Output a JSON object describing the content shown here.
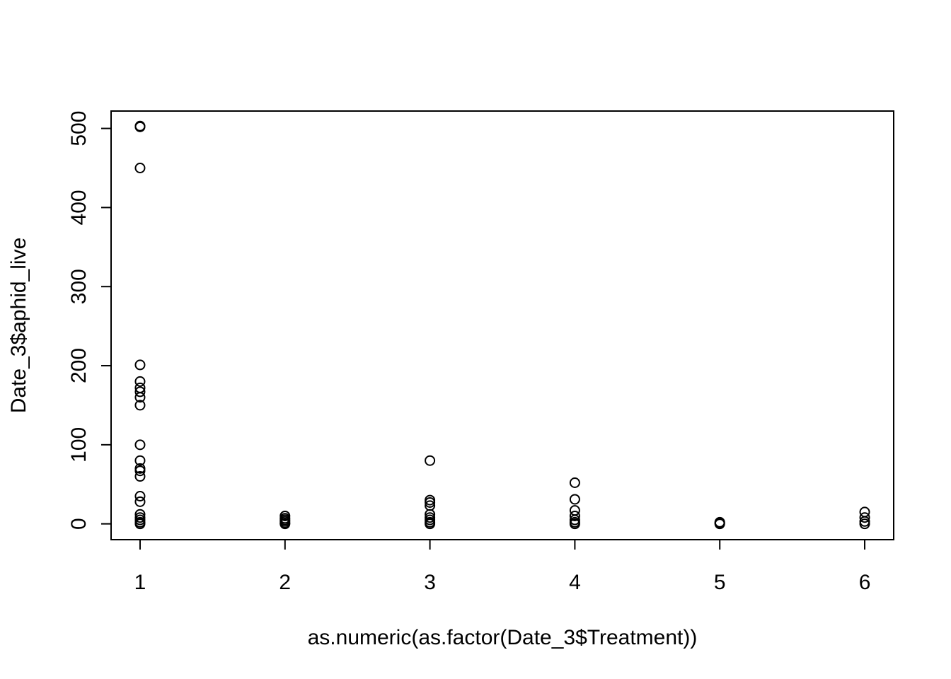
{
  "chart_data": {
    "type": "scatter",
    "title": "",
    "xlabel": "as.numeric(as.factor(Date_3$Treatment))",
    "ylabel": "Date_3$aphid_live",
    "xlim": [
      0.8,
      6.2
    ],
    "ylim": [
      -20,
      522
    ],
    "x_ticks": [
      1,
      2,
      3,
      4,
      5,
      6
    ],
    "x_tick_labels": [
      "1",
      "2",
      "3",
      "4",
      "5",
      "6"
    ],
    "y_ticks": [
      0,
      100,
      200,
      300,
      400,
      500
    ],
    "y_tick_labels": [
      "0",
      "100",
      "200",
      "300",
      "400",
      "500"
    ],
    "grid": false,
    "legend": "none",
    "marker": "open-circle",
    "series": [
      {
        "points": [
          {
            "x": 1,
            "y": 503
          },
          {
            "x": 1,
            "y": 502
          },
          {
            "x": 1,
            "y": 450
          },
          {
            "x": 1,
            "y": 201
          },
          {
            "x": 1,
            "y": 180
          },
          {
            "x": 1,
            "y": 172
          },
          {
            "x": 1,
            "y": 167
          },
          {
            "x": 1,
            "y": 160
          },
          {
            "x": 1,
            "y": 150
          },
          {
            "x": 1,
            "y": 100
          },
          {
            "x": 1,
            "y": 80
          },
          {
            "x": 1,
            "y": 70
          },
          {
            "x": 1,
            "y": 67
          },
          {
            "x": 1,
            "y": 60
          },
          {
            "x": 1,
            "y": 35
          },
          {
            "x": 1,
            "y": 28
          },
          {
            "x": 1,
            "y": 12
          },
          {
            "x": 1,
            "y": 8
          },
          {
            "x": 1,
            "y": 5
          },
          {
            "x": 1,
            "y": 2
          },
          {
            "x": 1,
            "y": 0
          },
          {
            "x": 2,
            "y": 10
          },
          {
            "x": 2,
            "y": 7
          },
          {
            "x": 2,
            "y": 5
          },
          {
            "x": 2,
            "y": 3
          },
          {
            "x": 2,
            "y": 1
          },
          {
            "x": 2,
            "y": 0
          },
          {
            "x": 3,
            "y": 80
          },
          {
            "x": 3,
            "y": 30
          },
          {
            "x": 3,
            "y": 27
          },
          {
            "x": 3,
            "y": 23
          },
          {
            "x": 3,
            "y": 12
          },
          {
            "x": 3,
            "y": 8
          },
          {
            "x": 3,
            "y": 5
          },
          {
            "x": 3,
            "y": 2
          },
          {
            "x": 3,
            "y": 0
          },
          {
            "x": 4,
            "y": 52
          },
          {
            "x": 4,
            "y": 31
          },
          {
            "x": 4,
            "y": 17
          },
          {
            "x": 4,
            "y": 10
          },
          {
            "x": 4,
            "y": 5
          },
          {
            "x": 4,
            "y": 2
          },
          {
            "x": 4,
            "y": 0
          },
          {
            "x": 5,
            "y": 2
          },
          {
            "x": 5,
            "y": 1
          },
          {
            "x": 5,
            "y": 0
          },
          {
            "x": 6,
            "y": 15
          },
          {
            "x": 6,
            "y": 8
          },
          {
            "x": 6,
            "y": 3
          },
          {
            "x": 6,
            "y": 0
          }
        ]
      }
    ]
  }
}
